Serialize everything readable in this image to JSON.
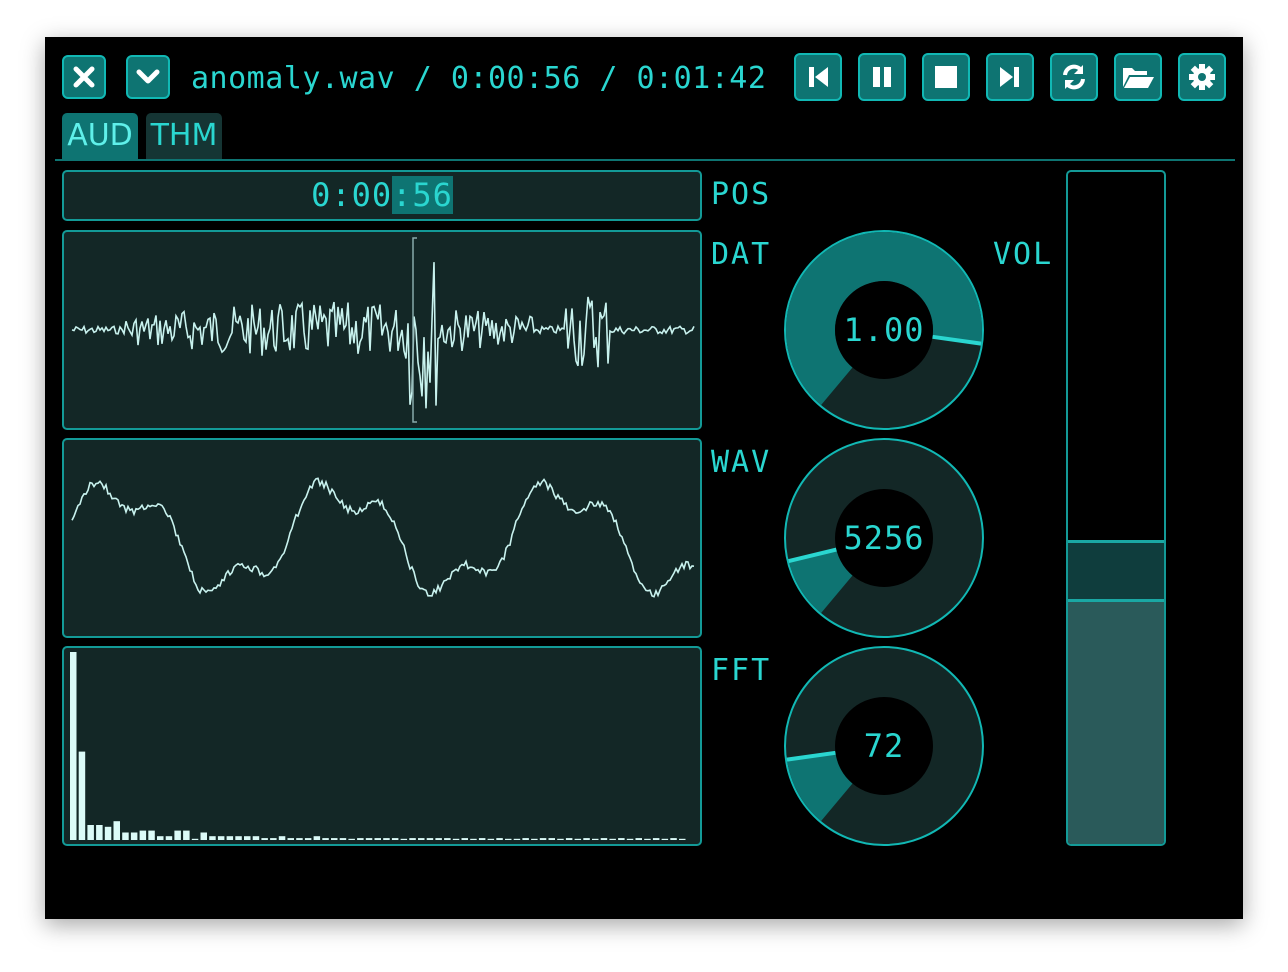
{
  "header": {
    "title": "anomaly.wav / 0:00:56 / 0:01:42",
    "buttons": [
      "close-icon",
      "chevron-down-icon",
      "skip-back-icon",
      "pause-icon",
      "stop-icon",
      "skip-forward-icon",
      "refresh-icon",
      "folder-open-icon",
      "gear-icon"
    ]
  },
  "tabs": [
    {
      "label": "AUD",
      "active": true
    },
    {
      "label": "THM",
      "active": false
    }
  ],
  "pos": {
    "label": "POS",
    "before": "0:00",
    "sep": ":",
    "after": "56"
  },
  "labels": {
    "dat": "DAT",
    "wav": "WAV",
    "fft": "FFT",
    "vol": "VOL"
  },
  "knobs": {
    "vol": {
      "value": "1.00",
      "fraction": 0.85,
      "color": "#0e7472"
    },
    "wav": {
      "value": "5256",
      "fraction": 0.13,
      "color": "#0e7472"
    },
    "fft": {
      "value": "72",
      "fraction": 0.15,
      "color": "#0e7472"
    }
  },
  "slider": {
    "level": 0.36
  },
  "fft_bars": [
    1.0,
    0.47,
    0.08,
    0.08,
    0.07,
    0.1,
    0.04,
    0.04,
    0.05,
    0.05,
    0.02,
    0.02,
    0.05,
    0.05,
    0.0,
    0.04,
    0.02,
    0.02,
    0.02,
    0.02,
    0.02,
    0.02,
    0.01,
    0.01,
    0.02,
    0.01,
    0.01,
    0.01,
    0.02,
    0.01,
    0.01,
    0.01,
    0.0,
    0.01,
    0.01,
    0.01,
    0.01,
    0.01,
    0.0,
    0.01,
    0.01,
    0.01,
    0.01,
    0.01,
    0.0,
    0.01,
    0.0,
    0.01,
    0.0,
    0.01,
    0.0,
    0.0,
    0.01,
    0.0,
    0.01,
    0.01,
    0.0,
    0.01,
    0.0,
    0.01,
    0.0,
    0.01,
    0.0,
    0.01,
    0.0,
    0.01,
    0.0,
    0.01,
    0.0,
    0.01,
    0.0
  ]
}
